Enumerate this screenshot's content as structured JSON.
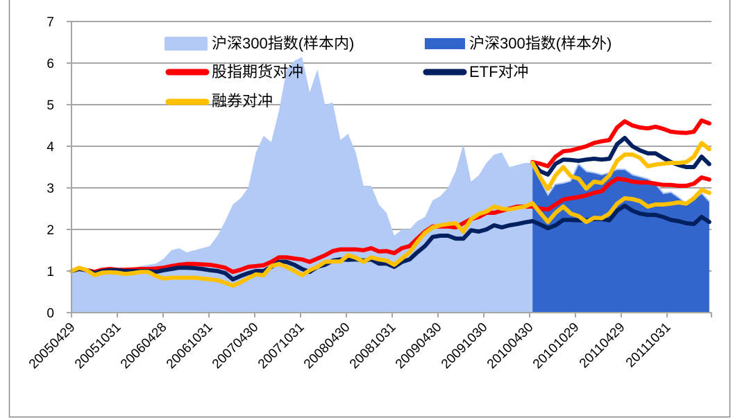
{
  "chart_data": {
    "type": "line+area",
    "title": "",
    "xlabel": "",
    "ylabel": "",
    "ylim": [
      0,
      7
    ],
    "yticks": [
      "0",
      "1",
      "2",
      "3",
      "4",
      "5",
      "6",
      "7"
    ],
    "x_tick_labels": [
      "20050429",
      "20051031",
      "20060428",
      "20061031",
      "20070430",
      "20071031",
      "20080430",
      "20081031",
      "20090430",
      "20091030",
      "20100430",
      "20101029",
      "20110429",
      "20111031"
    ],
    "x_frequency": "monthly",
    "grid": "horizontal",
    "legend_position": "top",
    "colors": {
      "in_sample": "#b3c9f6",
      "out_sample": "#3366cc",
      "futures": "#ff0000",
      "etf": "#002060",
      "short": "#ffc000",
      "grid": "#a6a6a6"
    },
    "legend": {
      "in_sample": "沪深300指数(样本内)",
      "out_sample": "沪深300指数(样本外)",
      "futures": "股指期货对冲",
      "etf": "ETF对冲",
      "short": "融券对冲"
    },
    "series": {
      "in_sample_index": {
        "start": 0,
        "values": [
          1.0,
          1.05,
          1.0,
          0.95,
          1.0,
          1.02,
          1.0,
          1.05,
          1.05,
          1.12,
          1.15,
          1.18,
          1.3,
          1.5,
          1.55,
          1.45,
          1.5,
          1.55,
          1.6,
          1.85,
          2.2,
          2.6,
          2.75,
          3.0,
          3.85,
          4.25,
          4.1,
          4.85,
          5.85,
          6.05,
          6.15,
          5.3,
          5.85,
          5.0,
          5.05,
          4.15,
          4.3,
          3.85,
          3.05,
          3.05,
          2.6,
          2.4,
          1.85,
          2.0,
          2.0,
          2.2,
          2.3,
          2.7,
          2.8,
          3.0,
          3.4,
          4.05,
          3.15,
          3.3,
          3.6,
          3.8,
          3.85,
          3.5,
          3.55,
          3.6,
          3.6
        ]
      },
      "out_sample_index": {
        "start": 60,
        "values": [
          3.6,
          3.15,
          2.8,
          3.07,
          3.1,
          3.15,
          3.55,
          3.38,
          3.35,
          3.3,
          3.35,
          3.43,
          3.43,
          3.3,
          3.25,
          3.2,
          3.07,
          2.85,
          2.88,
          2.75,
          2.6,
          2.7,
          2.85,
          2.65
        ]
      },
      "futures": {
        "start": 0,
        "values": [
          1.0,
          1.05,
          1.02,
          0.98,
          1.03,
          1.05,
          1.03,
          1.03,
          1.04,
          1.05,
          1.05,
          1.06,
          1.08,
          1.12,
          1.15,
          1.17,
          1.17,
          1.16,
          1.15,
          1.12,
          1.08,
          0.98,
          1.03,
          1.1,
          1.12,
          1.14,
          1.22,
          1.33,
          1.33,
          1.3,
          1.28,
          1.22,
          1.3,
          1.38,
          1.48,
          1.52,
          1.52,
          1.52,
          1.5,
          1.55,
          1.47,
          1.48,
          1.43,
          1.55,
          1.6,
          1.78,
          1.95,
          2.07,
          2.07,
          2.07,
          2.05,
          2.15,
          2.25,
          2.3,
          2.4,
          2.4,
          2.45,
          2.5,
          2.55,
          2.55,
          2.55,
          2.5,
          2.48,
          2.6,
          2.72,
          2.75,
          2.78,
          2.82,
          2.88,
          2.92,
          3.1,
          3.22,
          3.2,
          3.15,
          3.13,
          3.13,
          3.1,
          3.07,
          3.07,
          3.05,
          3.05,
          3.1,
          3.25,
          3.2
        ]
      },
      "futures_out_sample": {
        "start": 60,
        "values": [
          3.62,
          3.58,
          3.52,
          3.75,
          3.88,
          3.9,
          3.95,
          4.0,
          4.08,
          4.12,
          4.15,
          4.45,
          4.6,
          4.5,
          4.45,
          4.43,
          4.47,
          4.42,
          4.35,
          4.33,
          4.32,
          4.35,
          4.62,
          4.55
        ]
      },
      "etf": {
        "start": 0,
        "values": [
          1.0,
          1.05,
          1.02,
          0.95,
          1.0,
          1.02,
          1.02,
          1.0,
          1.0,
          1.0,
          1.0,
          0.98,
          1.02,
          1.05,
          1.08,
          1.08,
          1.07,
          1.05,
          1.02,
          1.0,
          0.95,
          0.8,
          0.88,
          0.95,
          1.0,
          1.0,
          1.1,
          1.22,
          1.22,
          1.15,
          1.05,
          0.98,
          1.1,
          1.15,
          1.25,
          1.28,
          1.27,
          1.28,
          1.25,
          1.28,
          1.18,
          1.18,
          1.1,
          1.22,
          1.28,
          1.45,
          1.6,
          1.82,
          1.85,
          1.85,
          1.78,
          1.78,
          1.98,
          1.95,
          2.0,
          2.1,
          2.05,
          2.1,
          2.13,
          2.17,
          2.2,
          2.12,
          2.03,
          2.1,
          2.23,
          2.23,
          2.22,
          2.22,
          2.25,
          2.25,
          2.22,
          2.45,
          2.57,
          2.45,
          2.38,
          2.35,
          2.35,
          2.3,
          2.23,
          2.2,
          2.15,
          2.13,
          2.3,
          2.18
        ]
      },
      "etf_out_sample": {
        "start": 60,
        "values": [
          3.6,
          3.4,
          3.32,
          3.58,
          3.68,
          3.67,
          3.65,
          3.68,
          3.7,
          3.68,
          3.7,
          4.05,
          4.2,
          4.0,
          3.9,
          3.83,
          3.83,
          3.72,
          3.62,
          3.55,
          3.5,
          3.5,
          3.75,
          3.57
        ]
      },
      "short": {
        "start": 0,
        "values": [
          1.0,
          1.08,
          1.02,
          0.9,
          0.96,
          0.97,
          0.96,
          0.93,
          0.95,
          0.98,
          0.98,
          0.88,
          0.82,
          0.84,
          0.84,
          0.84,
          0.84,
          0.82,
          0.8,
          0.78,
          0.72,
          0.65,
          0.73,
          0.83,
          0.92,
          0.9,
          1.12,
          1.17,
          1.1,
          1.0,
          0.9,
          1.02,
          1.1,
          1.22,
          1.23,
          1.23,
          1.38,
          1.32,
          1.22,
          1.33,
          1.28,
          1.25,
          1.15,
          1.3,
          1.45,
          1.7,
          1.92,
          2.05,
          2.1,
          2.13,
          2.15,
          1.95,
          2.25,
          2.37,
          2.43,
          2.55,
          2.5,
          2.48,
          2.52,
          2.55,
          2.63,
          2.4,
          2.18,
          2.4,
          2.55,
          2.38,
          2.32,
          2.18,
          2.28,
          2.27,
          2.38,
          2.62,
          2.75,
          2.73,
          2.68,
          2.55,
          2.6,
          2.6,
          2.62,
          2.65,
          2.62,
          2.75,
          2.95,
          2.88
        ]
      },
      "short_out_sample": {
        "start": 60,
        "values": [
          3.6,
          3.25,
          2.97,
          3.3,
          3.5,
          3.28,
          3.22,
          2.98,
          3.15,
          3.12,
          3.3,
          3.65,
          3.8,
          3.8,
          3.72,
          3.52,
          3.56,
          3.58,
          3.6,
          3.6,
          3.62,
          3.75,
          4.08,
          3.93
        ]
      }
    }
  }
}
